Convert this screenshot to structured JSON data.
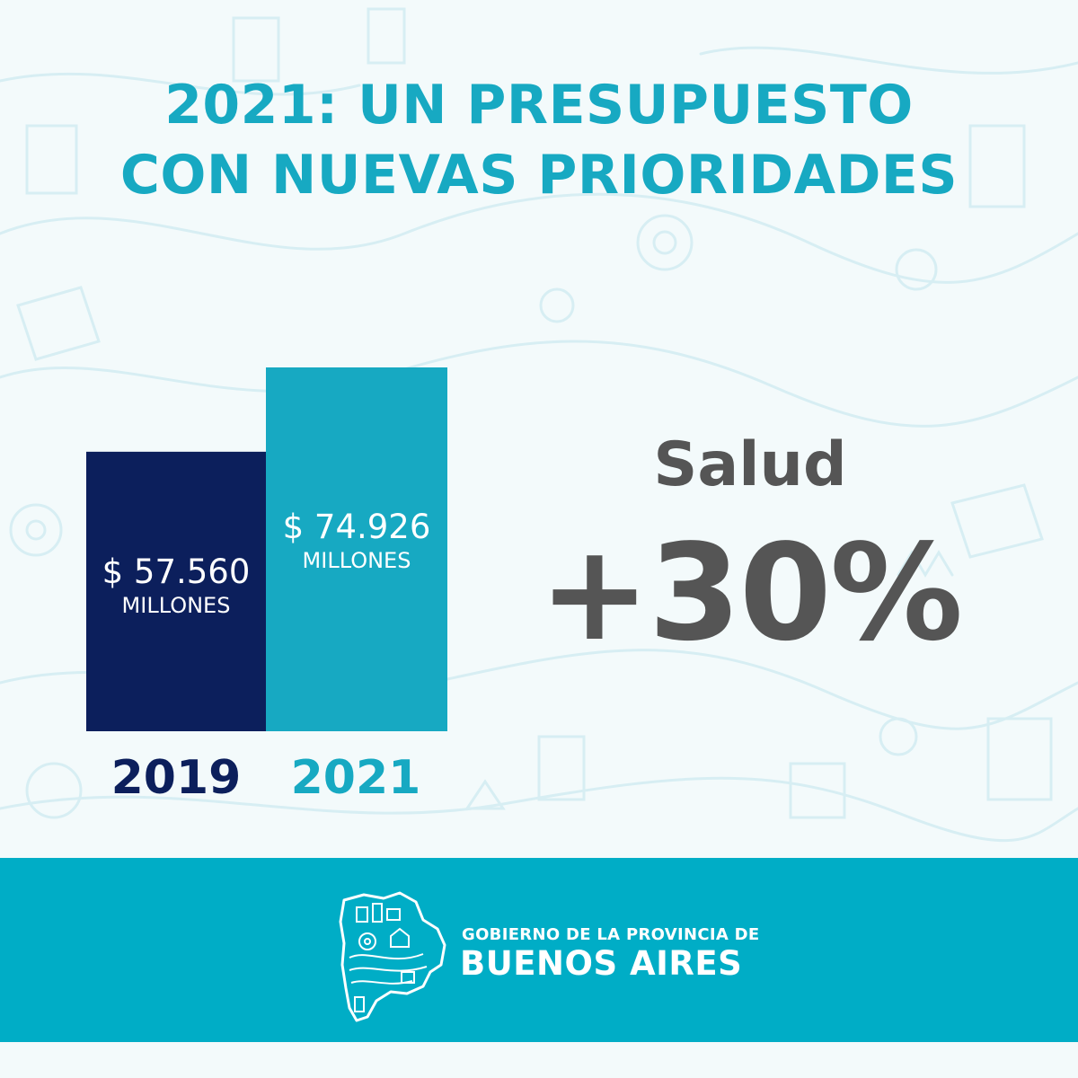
{
  "title": {
    "line1": "2021: UN PRESUPUESTO",
    "line2": "CON NUEVAS PRIORIDADES"
  },
  "colors": {
    "title": "#17a9c2",
    "bar_2019": "#0c1f5c",
    "bar_2021": "#17a9c2",
    "highlight_text": "#555555",
    "footer": "#00adc6"
  },
  "chart_data": {
    "type": "bar",
    "categories": [
      "2019",
      "2021"
    ],
    "values": [
      57560,
      74926
    ],
    "value_labels": [
      "$ 57.560",
      "$ 74.926"
    ],
    "unit_label": "MILLONES",
    "grid": false,
    "legend": "none"
  },
  "highlight": {
    "label": "Salud",
    "value": "+30%"
  },
  "footer": {
    "line1": "GOBIERNO DE LA PROVINCIA DE",
    "line2": "BUENOS AIRES",
    "logo_icon": "buenos-aires-province-map-icon"
  }
}
